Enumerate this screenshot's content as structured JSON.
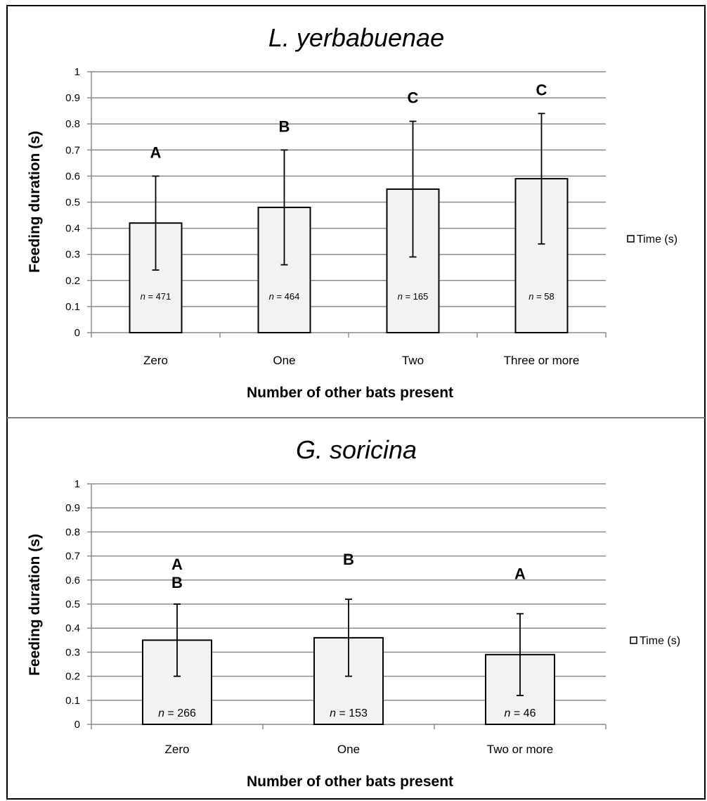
{
  "chart_data": [
    {
      "type": "bar",
      "title": "L. yerbabuenae",
      "xlabel": "Number of other bats present",
      "ylabel": "Feeding duration (s)",
      "ylim": [
        0,
        1
      ],
      "yticks": [
        "0",
        "0.1",
        "0.2",
        "0.3",
        "0.4",
        "0.5",
        "0.6",
        "0.7",
        "0.8",
        "0.9",
        "1"
      ],
      "categories": [
        "Zero",
        "One",
        "Two",
        "Three or more"
      ],
      "series": [
        {
          "name": "Time (s)",
          "values": [
            0.42,
            0.48,
            0.55,
            0.59
          ],
          "error_low": [
            0.24,
            0.26,
            0.29,
            0.34
          ],
          "error_high": [
            0.6,
            0.7,
            0.81,
            0.84
          ]
        }
      ],
      "significance_letters": [
        "A",
        "B",
        "C",
        "C"
      ],
      "sample_size_prefix": "n",
      "sample_sizes": [
        "= 471",
        "= 464",
        "= 165",
        "= 58"
      ],
      "grid": true,
      "legend_position": "right"
    },
    {
      "type": "bar",
      "title": "G. soricina",
      "xlabel": "Number of other bats present",
      "ylabel": "Feeding duration (s)",
      "ylim": [
        0,
        1
      ],
      "yticks": [
        "0",
        "0.1",
        "0.2",
        "0.3",
        "0.4",
        "0.5",
        "0.6",
        "0.7",
        "0.8",
        "0.9",
        "1"
      ],
      "categories": [
        "Zero",
        "One",
        "Two or more"
      ],
      "series": [
        {
          "name": "Time (s)",
          "values": [
            0.35,
            0.36,
            0.29
          ],
          "error_low": [
            0.2,
            0.2,
            0.12
          ],
          "error_high": [
            0.5,
            0.52,
            0.46
          ]
        }
      ],
      "significance_letters": [
        [
          "A",
          "B"
        ],
        [
          "B"
        ],
        [
          "A"
        ]
      ],
      "sample_size_prefix": "n",
      "sample_sizes": [
        "= 266",
        "= 153",
        "= 46"
      ],
      "grid": true,
      "legend_position": "right"
    }
  ]
}
